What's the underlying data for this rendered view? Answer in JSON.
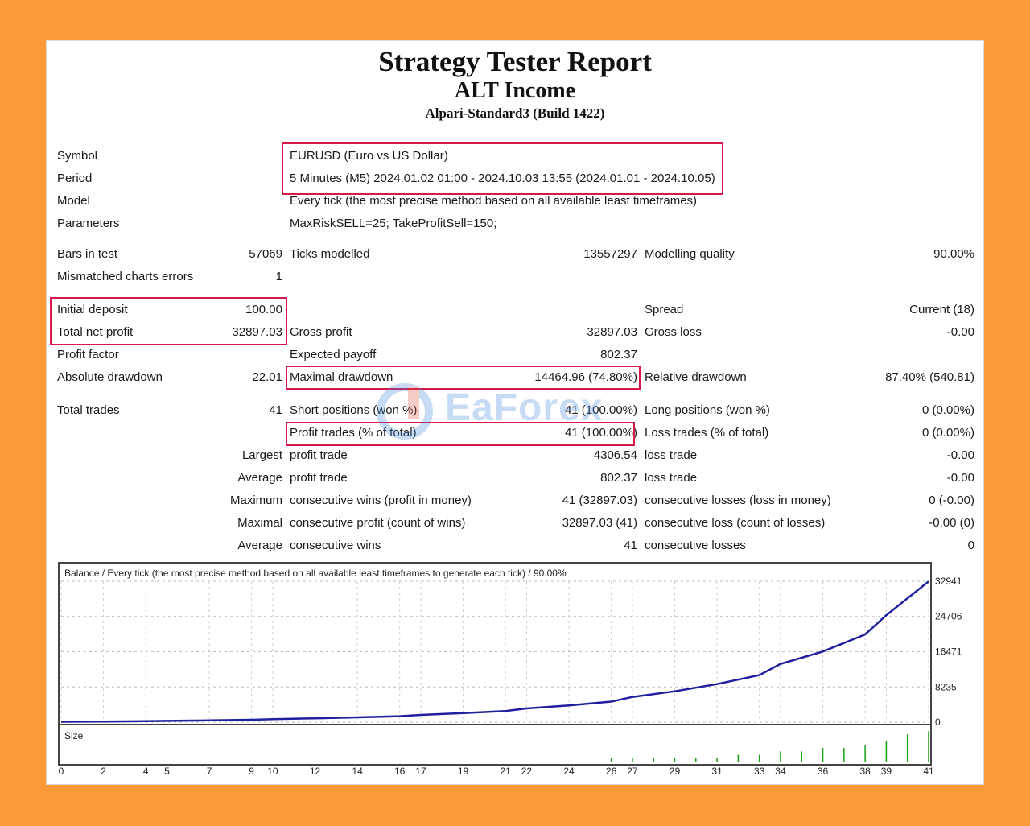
{
  "header": {
    "title": "Strategy Tester Report",
    "subtitle": "ALT Income",
    "build": "Alpari-Standard3 (Build 1422)"
  },
  "info": {
    "symbol_label": "Symbol",
    "symbol_value": "EURUSD (Euro vs US Dollar)",
    "period_label": "Period",
    "period_value": "5 Minutes (M5) 2024.01.02 01:00 - 2024.10.03 13:55 (2024.01.01 - 2024.10.05)",
    "model_label": "Model",
    "model_value": "Every tick (the most precise method based on all available least timeframes)",
    "parameters_label": "Parameters",
    "parameters_value": "MaxRiskSELL=25; TakeProfitSell=150;"
  },
  "stats": {
    "bars_in_test_label": "Bars in test",
    "bars_in_test_value": "57069",
    "ticks_modelled_label": "Ticks modelled",
    "ticks_modelled_value": "13557297",
    "modelling_quality_label": "Modelling quality",
    "modelling_quality_value": "90.00%",
    "mismatched_label": "Mismatched charts errors",
    "mismatched_value": "1",
    "initial_deposit_label": "Initial deposit",
    "initial_deposit_value": "100.00",
    "spread_label": "Spread",
    "spread_value": "Current (18)",
    "total_net_profit_label": "Total net profit",
    "total_net_profit_value": "32897.03",
    "gross_profit_label": "Gross profit",
    "gross_profit_value": "32897.03",
    "gross_loss_label": "Gross loss",
    "gross_loss_value": "-0.00",
    "profit_factor_label": "Profit factor",
    "expected_payoff_label": "Expected payoff",
    "expected_payoff_value": "802.37",
    "absolute_drawdown_label": "Absolute drawdown",
    "absolute_drawdown_value": "22.01",
    "maximal_drawdown_label": "Maximal drawdown",
    "maximal_drawdown_value": "14464.96 (74.80%)",
    "relative_drawdown_label": "Relative drawdown",
    "relative_drawdown_value": "87.40% (540.81)",
    "total_trades_label": "Total trades",
    "total_trades_value": "41",
    "short_positions_label": "Short positions (won %)",
    "short_positions_value": "41 (100.00%)",
    "long_positions_label": "Long positions (won %)",
    "long_positions_value": "0 (0.00%)",
    "profit_trades_label": "Profit trades (% of total)",
    "profit_trades_value": "41 (100.00%)",
    "loss_trades_label": "Loss trades (% of total)",
    "loss_trades_value": "0 (0.00%)",
    "largest_label": "Largest",
    "largest_profit_label": "profit trade",
    "largest_profit_value": "4306.54",
    "largest_loss_label": "loss trade",
    "largest_loss_value": "-0.00",
    "average_label": "Average",
    "average_profit_label": "profit trade",
    "average_profit_value": "802.37",
    "average_loss_label": "loss trade",
    "average_loss_value": "-0.00",
    "maximum_label": "Maximum",
    "max_consec_wins_label": "consecutive wins (profit in money)",
    "max_consec_wins_value": "41 (32897.03)",
    "max_consec_losses_label": "consecutive losses (loss in money)",
    "max_consec_losses_value": "0 (-0.00)",
    "maximal_label": "Maximal",
    "maximal_consec_profit_label": "consecutive profit (count of wins)",
    "maximal_consec_profit_value": "32897.03 (41)",
    "maximal_consec_loss_label": "consecutive loss (count of losses)",
    "maximal_consec_loss_value": "-0.00 (0)",
    "average2_label": "Average",
    "avg_consec_wins_label": "consecutive wins",
    "avg_consec_wins_value": "41",
    "avg_consec_losses_label": "consecutive losses",
    "avg_consec_losses_value": "0"
  },
  "watermark": {
    "text": "EaForex"
  },
  "colors": {
    "highlight": "#d6184b",
    "balance_line": "#1f1fa0",
    "size_bars": "#14a014",
    "background": "#fc9a37"
  },
  "chart_data": {
    "type": "line",
    "title": "Balance / Every tick (the most precise method based on all available least timeframes to generate each tick) / 90.00%",
    "size_label": "Size",
    "x_ticks": [
      "0",
      "2",
      "4",
      "5",
      "7",
      "9",
      "10",
      "12",
      "14",
      "16",
      "17",
      "19",
      "21",
      "22",
      "24",
      "26",
      "27",
      "29",
      "31",
      "33",
      "34",
      "36",
      "38",
      "39",
      "41"
    ],
    "y_ticks": [
      "32941",
      "24706",
      "16471",
      "8235",
      "0"
    ],
    "ylim": [
      0,
      32941
    ],
    "xlim": [
      0,
      41
    ],
    "grid": true,
    "series": [
      {
        "x": [
          0,
          2,
          4,
          5,
          7,
          9,
          10,
          12,
          14,
          16,
          17,
          19,
          21,
          22,
          24,
          26,
          27,
          29,
          31,
          33,
          34,
          36,
          38,
          39,
          41
        ],
        "values": [
          100,
          150,
          220,
          300,
          420,
          560,
          720,
          900,
          1120,
          1400,
          1700,
          2100,
          2600,
          3200,
          3900,
          4800,
          5900,
          7200,
          8900,
          11000,
          13600,
          16500,
          20500,
          25000,
          32897
        ]
      }
    ],
    "size_bars_x": [
      26,
      27,
      28,
      29,
      30,
      31,
      32,
      33,
      34,
      35,
      36,
      37,
      38,
      39,
      40,
      41
    ],
    "size_bars_values": [
      1,
      1,
      1,
      1,
      1,
      1,
      2,
      2,
      3,
      3,
      4,
      4,
      5,
      6,
      8,
      9
    ]
  }
}
